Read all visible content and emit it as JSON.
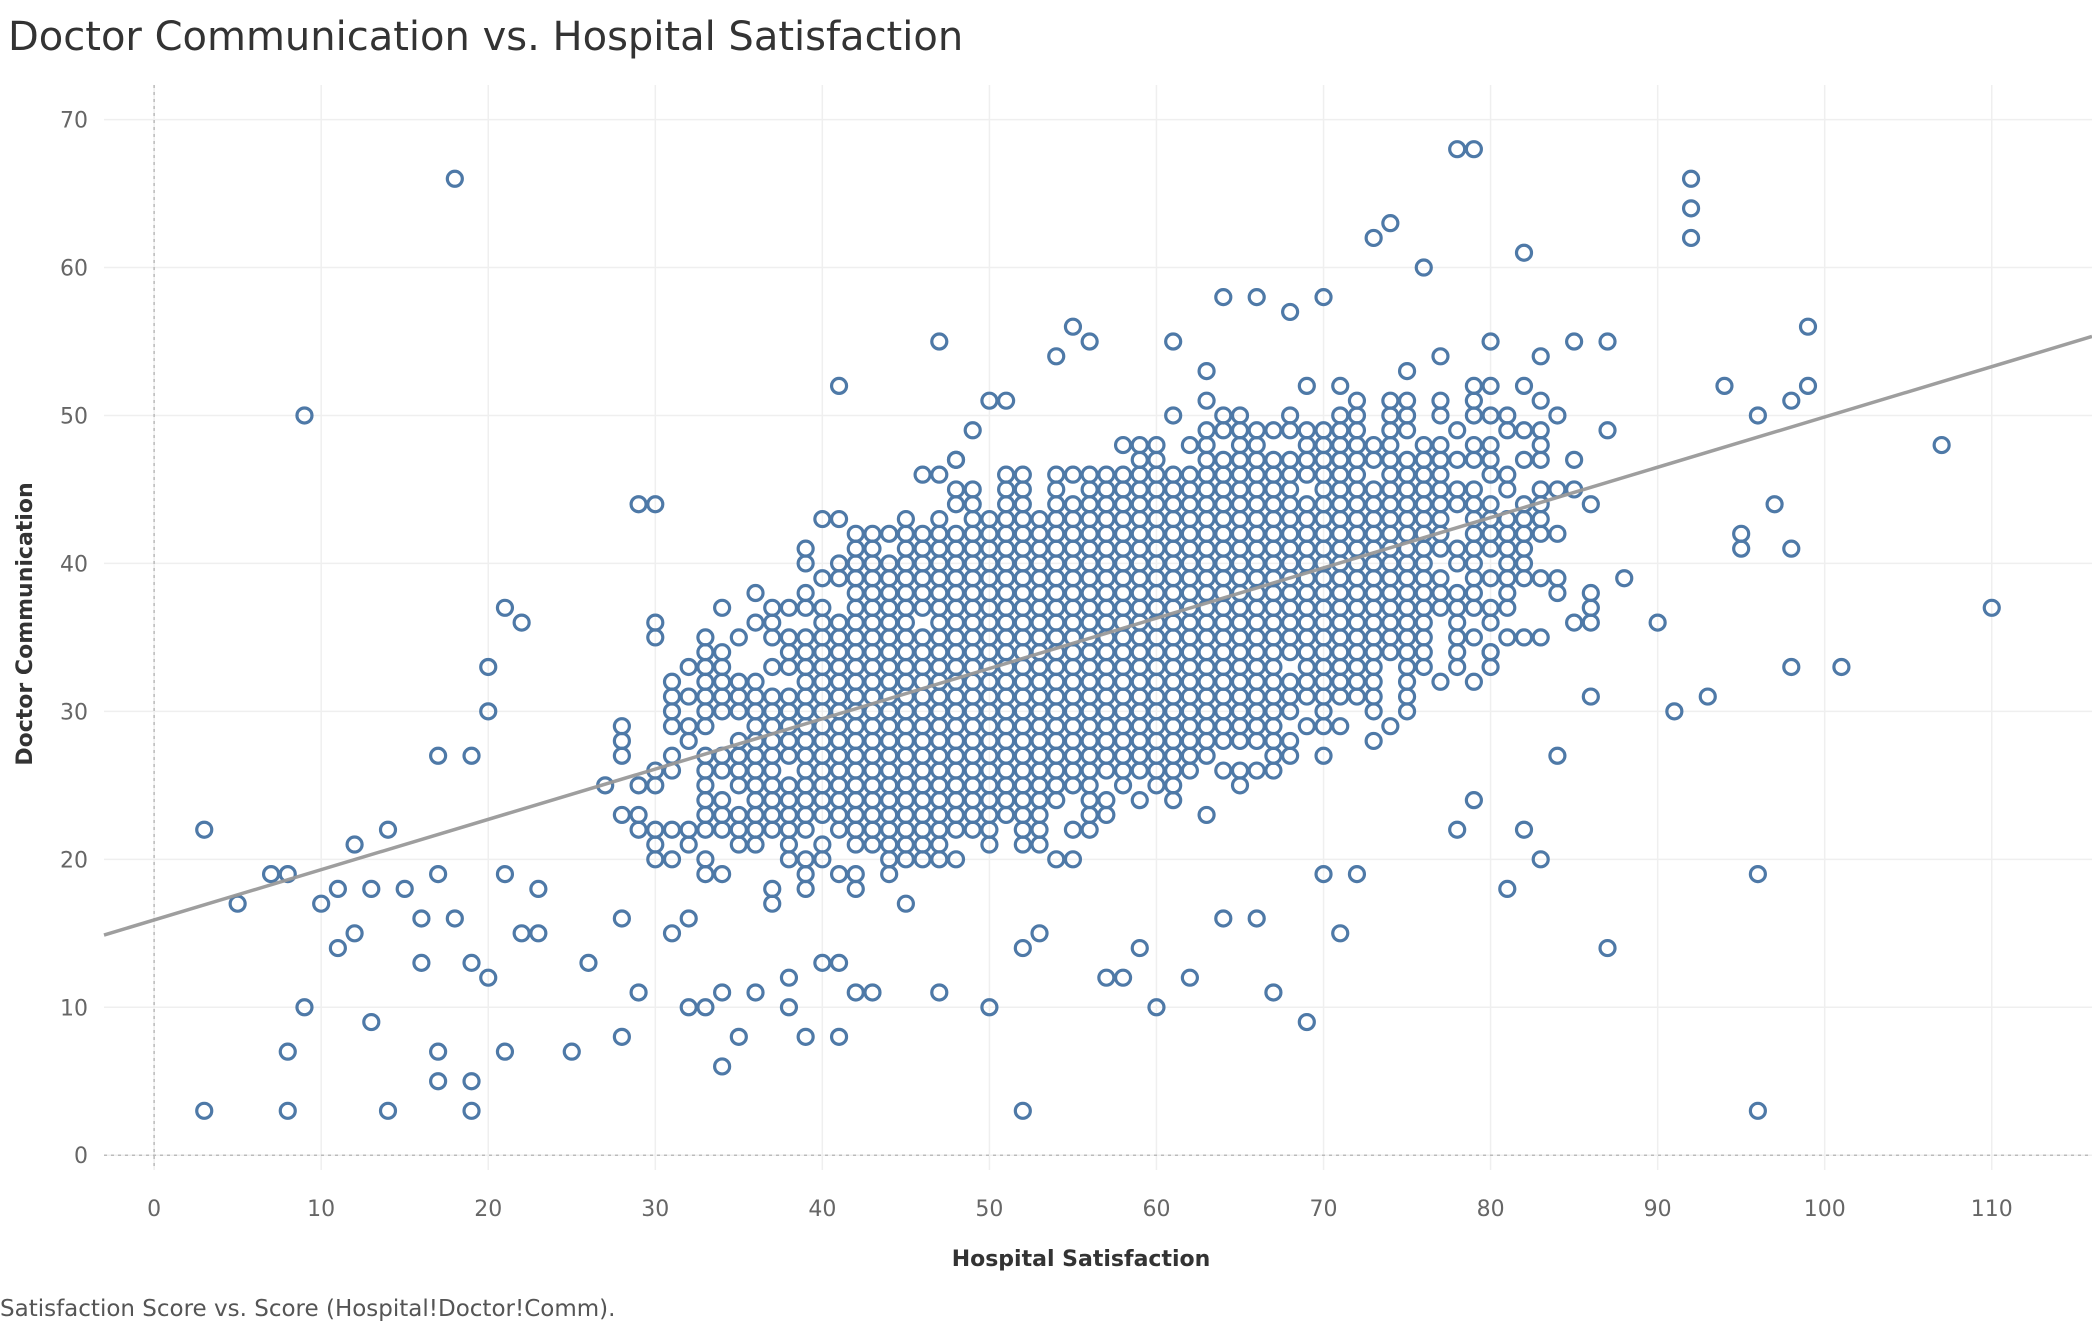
{
  "title": "Doctor Communication vs. Hospital Satisfaction",
  "caption": "Satisfaction Score vs. Score (Hospital!Doctor!Comm).",
  "colors": {
    "point": "#4e79a7",
    "trend": "#999999",
    "grid": "#efefef",
    "zero": "#bbbbbb"
  },
  "chart_data": {
    "type": "scatter",
    "xlabel": "Hospital Satisfaction",
    "ylabel": "Doctor Communication",
    "xlim": [
      -3,
      116
    ],
    "ylim": [
      -1,
      72
    ],
    "xticks": [
      "0",
      "10",
      "20",
      "30",
      "40",
      "50",
      "60",
      "70",
      "80",
      "90",
      "100",
      "110"
    ],
    "yticks": [
      "0",
      "10",
      "20",
      "30",
      "40",
      "50",
      "60",
      "70"
    ],
    "grid": true,
    "marker": "hollow-circle",
    "trend_line": {
      "slope": 0.34,
      "intercept": 15.9
    },
    "cluster_note": "dense central cloud of points approximately x 25-90, y 10-58 roughly following the trend line",
    "series": [
      {
        "x": [
          3,
          3,
          5,
          7,
          8,
          8,
          8,
          9,
          9,
          10,
          11,
          11,
          12,
          12,
          13,
          13,
          14,
          14,
          15,
          16,
          16,
          17,
          17,
          17,
          17,
          18,
          18,
          19,
          19,
          19,
          19,
          20,
          20,
          20,
          21,
          21,
          21,
          22,
          22,
          23,
          23,
          25,
          26,
          28,
          28,
          29,
          29,
          30,
          31,
          32,
          33,
          34,
          34,
          35,
          36,
          38,
          38,
          39,
          40,
          41,
          41,
          41,
          42,
          43,
          46,
          47,
          47,
          48,
          49,
          50,
          50,
          51,
          52,
          52,
          53,
          54,
          55,
          56,
          57,
          58,
          59,
          60,
          61,
          62,
          63,
          64,
          64,
          66,
          66,
          67,
          68,
          69,
          70,
          70,
          71,
          72,
          73,
          74,
          74,
          76,
          78,
          78,
          79,
          79,
          80,
          81,
          82,
          82,
          83,
          84,
          85,
          86,
          87,
          87,
          88,
          90,
          91,
          92,
          92,
          92,
          93,
          94,
          95,
          95,
          96,
          96,
          96,
          97,
          98,
          98,
          98,
          99,
          99,
          101,
          107,
          110
        ],
        "y": [
          3,
          22,
          17,
          19,
          3,
          7,
          19,
          10,
          50,
          17,
          14,
          18,
          15,
          21,
          9,
          18,
          3,
          22,
          18,
          13,
          16,
          5,
          7,
          19,
          27,
          16,
          66,
          3,
          5,
          13,
          27,
          12,
          30,
          33,
          7,
          19,
          37,
          15,
          36,
          15,
          18,
          7,
          13,
          8,
          16,
          11,
          44,
          44,
          15,
          10,
          10,
          11,
          6,
          8,
          11,
          12,
          10,
          8,
          13,
          8,
          13,
          52,
          11,
          11,
          46,
          11,
          55,
          47,
          49,
          10,
          51,
          51,
          3,
          14,
          15,
          54,
          56,
          55,
          12,
          12,
          14,
          10,
          55,
          12,
          53,
          16,
          58,
          16,
          58,
          11,
          57,
          9,
          58,
          19,
          15,
          19,
          62,
          63,
          29,
          60,
          22,
          68,
          24,
          68,
          34,
          18,
          22,
          61,
          20,
          27,
          55,
          31,
          14,
          55,
          39,
          36,
          30,
          62,
          64,
          66,
          31,
          52,
          41,
          42,
          3,
          19,
          50,
          44,
          33,
          41,
          51,
          52,
          56,
          33,
          48,
          37
        ]
      }
    ]
  }
}
